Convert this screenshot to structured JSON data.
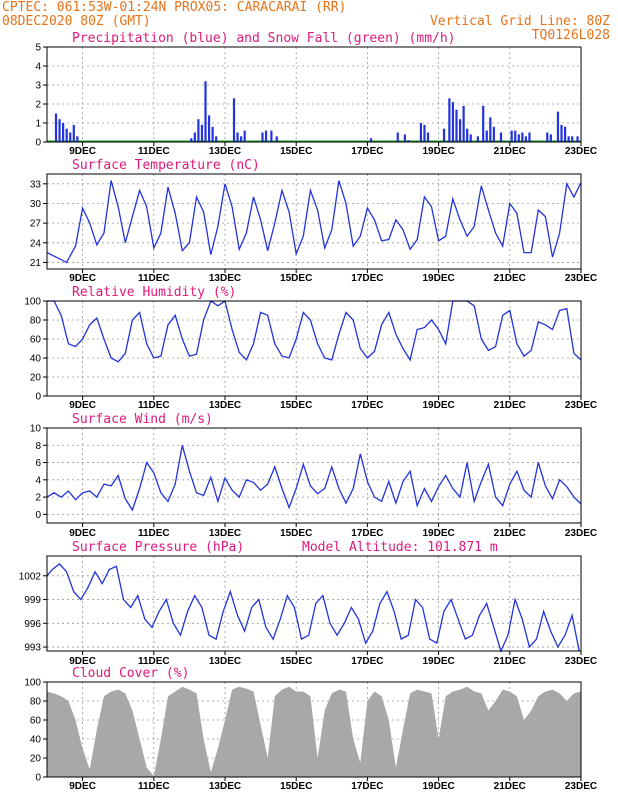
{
  "header": {
    "line1_left": "CPTEC:   061:53W-01:24N  PROX05: CARACARAI (RR)",
    "line2_left": "08DEC2020 80Z (GMT)",
    "line2_right": "Vertical Grid Line: 80Z",
    "line3_right": "TQ0126L028"
  },
  "colors": {
    "header": "#e8731a",
    "panel_title": "#e0197d",
    "series": "#2233dd",
    "snow": "#1a9a1a",
    "cloud": "#a8a8a8",
    "grid": "#9a9a9a"
  },
  "x_axis": {
    "labels": [
      "9DEC",
      "11DEC",
      "13DEC",
      "15DEC",
      "17DEC",
      "19DEC",
      "21DEC",
      "23DEC"
    ],
    "label_days": [
      1,
      3,
      5,
      7,
      9,
      11,
      13,
      15
    ],
    "range_days": [
      0,
      15
    ]
  },
  "chart_data": [
    {
      "type": "bar",
      "title": "Precipitation (blue) and Snow Fall (green) (mm/h)",
      "ylim": [
        0,
        5
      ],
      "yticks": [
        0,
        1,
        2,
        3,
        4,
        5
      ],
      "series": [
        {
          "name": "Precipitation",
          "color": "blue",
          "points": [
            [
              0.25,
              1.5
            ],
            [
              0.35,
              1.2
            ],
            [
              0.45,
              1.0
            ],
            [
              0.55,
              0.7
            ],
            [
              0.65,
              0.5
            ],
            [
              0.75,
              0.9
            ],
            [
              0.85,
              0.3
            ],
            [
              4.05,
              0.2
            ],
            [
              4.15,
              0.5
            ],
            [
              4.25,
              1.2
            ],
            [
              4.35,
              0.9
            ],
            [
              4.45,
              3.2
            ],
            [
              4.55,
              1.4
            ],
            [
              4.65,
              0.8
            ],
            [
              4.75,
              0.3
            ],
            [
              5.25,
              2.3
            ],
            [
              5.35,
              0.5
            ],
            [
              5.45,
              0.3
            ],
            [
              5.55,
              0.6
            ],
            [
              6.05,
              0.5
            ],
            [
              6.15,
              0.6
            ],
            [
              6.3,
              0.6
            ],
            [
              6.45,
              0.3
            ],
            [
              9.1,
              0.2
            ],
            [
              9.85,
              0.5
            ],
            [
              10.05,
              0.4
            ],
            [
              10.15,
              0.1
            ],
            [
              10.5,
              1.0
            ],
            [
              10.6,
              0.9
            ],
            [
              10.7,
              0.5
            ],
            [
              11.15,
              0.7
            ],
            [
              11.3,
              2.3
            ],
            [
              11.4,
              2.1
            ],
            [
              11.5,
              1.7
            ],
            [
              11.6,
              1.2
            ],
            [
              11.7,
              1.9
            ],
            [
              11.8,
              0.7
            ],
            [
              11.9,
              0.4
            ],
            [
              12.1,
              0.3
            ],
            [
              12.25,
              1.9
            ],
            [
              12.35,
              0.6
            ],
            [
              12.45,
              1.3
            ],
            [
              12.55,
              0.8
            ],
            [
              12.75,
              0.5
            ],
            [
              13.05,
              0.6
            ],
            [
              13.15,
              0.6
            ],
            [
              13.25,
              0.4
            ],
            [
              13.35,
              0.5
            ],
            [
              13.45,
              0.3
            ],
            [
              13.55,
              0.5
            ],
            [
              14.05,
              0.5
            ],
            [
              14.15,
              0.4
            ],
            [
              14.35,
              1.6
            ],
            [
              14.45,
              0.9
            ],
            [
              14.55,
              0.8
            ],
            [
              14.65,
              0.3
            ],
            [
              14.75,
              0.3
            ],
            [
              14.9,
              0.3
            ]
          ]
        },
        {
          "name": "Snow Fall",
          "color": "green",
          "points": []
        }
      ]
    },
    {
      "type": "line",
      "title": "Surface Temperature (nC)",
      "ylim": [
        20,
        34.5
      ],
      "yticks": [
        21,
        24,
        27,
        30,
        33
      ],
      "x": [
        0,
        0.3,
        0.55,
        0.8,
        1.0,
        1.2,
        1.4,
        1.6,
        1.8,
        2.0,
        2.2,
        2.4,
        2.6,
        2.8,
        3.0,
        3.2,
        3.4,
        3.6,
        3.8,
        4.0,
        4.2,
        4.4,
        4.6,
        4.8,
        5.0,
        5.2,
        5.4,
        5.6,
        5.8,
        6.0,
        6.2,
        6.4,
        6.6,
        6.8,
        7.0,
        7.2,
        7.4,
        7.6,
        7.8,
        8.0,
        8.2,
        8.4,
        8.6,
        8.8,
        9.0,
        9.2,
        9.4,
        9.6,
        9.8,
        10.0,
        10.2,
        10.4,
        10.6,
        10.8,
        11.0,
        11.2,
        11.4,
        11.6,
        11.8,
        12.0,
        12.2,
        12.4,
        12.6,
        12.8,
        13.0,
        13.2,
        13.4,
        13.6,
        13.8,
        14.0,
        14.2,
        14.4,
        14.6,
        14.8,
        15.0
      ],
      "series": [
        {
          "values": [
            22.5,
            21.7,
            21.0,
            23.5,
            29.3,
            27.0,
            23.7,
            25.5,
            33.5,
            29.5,
            24.0,
            28.0,
            32.0,
            29.5,
            23.2,
            25.5,
            32.5,
            28.5,
            22.8,
            24.0,
            31.0,
            28.7,
            22.2,
            26.5,
            33.0,
            29.5,
            23.0,
            25.5,
            31.0,
            27.5,
            22.8,
            27.0,
            32.0,
            28.7,
            22.3,
            25.0,
            32.0,
            29.0,
            23.2,
            26.0,
            33.5,
            30.0,
            23.5,
            25.0,
            29.3,
            27.5,
            24.3,
            24.5,
            27.5,
            26.0,
            23.0,
            24.5,
            31.0,
            29.5,
            24.3,
            25.0,
            30.7,
            27.5,
            25.0,
            26.5,
            32.7,
            29.0,
            25.5,
            23.5,
            30.0,
            28.5,
            22.5,
            22.5,
            29.0,
            28.0,
            21.8,
            25.5,
            33.0,
            31.0,
            33.2
          ]
        }
      ]
    },
    {
      "type": "line",
      "title": "Relative Humidity (%)",
      "ylim": [
        0,
        100
      ],
      "yticks": [
        0,
        20,
        40,
        60,
        80,
        100
      ],
      "x": [
        0,
        0.2,
        0.4,
        0.6,
        0.8,
        1.0,
        1.2,
        1.4,
        1.6,
        1.8,
        2.0,
        2.2,
        2.4,
        2.6,
        2.8,
        3.0,
        3.2,
        3.4,
        3.6,
        3.8,
        4.0,
        4.2,
        4.4,
        4.6,
        4.8,
        5.0,
        5.2,
        5.4,
        5.6,
        5.8,
        6.0,
        6.2,
        6.4,
        6.6,
        6.8,
        7.0,
        7.2,
        7.4,
        7.6,
        7.8,
        8.0,
        8.2,
        8.4,
        8.6,
        8.8,
        9.0,
        9.2,
        9.4,
        9.6,
        9.8,
        10.0,
        10.2,
        10.4,
        10.6,
        10.8,
        11.0,
        11.2,
        11.4,
        11.6,
        11.8,
        12.0,
        12.2,
        12.4,
        12.6,
        12.8,
        13.0,
        13.2,
        13.4,
        13.6,
        13.8,
        14.0,
        14.2,
        14.4,
        14.6,
        14.8,
        15.0
      ],
      "series": [
        {
          "values": [
            100,
            100,
            85,
            55,
            52,
            60,
            75,
            82,
            60,
            40,
            36,
            45,
            80,
            88,
            55,
            40,
            42,
            75,
            85,
            60,
            42,
            44,
            80,
            100,
            95,
            100,
            70,
            46,
            38,
            55,
            88,
            85,
            55,
            42,
            40,
            60,
            88,
            80,
            55,
            40,
            38,
            65,
            88,
            80,
            50,
            40,
            47,
            75,
            88,
            65,
            50,
            38,
            70,
            72,
            80,
            70,
            55,
            100,
            100,
            100,
            95,
            60,
            48,
            52,
            85,
            90,
            55,
            42,
            48,
            78,
            75,
            70,
            90,
            92,
            45,
            38
          ]
        }
      ]
    },
    {
      "type": "line",
      "title": "Surface Wind (m/s)",
      "ylim": [
        -1,
        10
      ],
      "yticks": [
        0,
        2,
        4,
        6,
        8,
        10
      ],
      "x": [
        0,
        0.2,
        0.4,
        0.6,
        0.8,
        1.0,
        1.2,
        1.4,
        1.6,
        1.8,
        2.0,
        2.2,
        2.4,
        2.6,
        2.8,
        3.0,
        3.2,
        3.4,
        3.6,
        3.8,
        4.0,
        4.2,
        4.4,
        4.6,
        4.8,
        5.0,
        5.2,
        5.4,
        5.6,
        5.8,
        6.0,
        6.2,
        6.4,
        6.6,
        6.8,
        7.0,
        7.2,
        7.4,
        7.6,
        7.8,
        8.0,
        8.2,
        8.4,
        8.6,
        8.8,
        9.0,
        9.2,
        9.4,
        9.6,
        9.8,
        10.0,
        10.2,
        10.4,
        10.6,
        10.8,
        11.0,
        11.2,
        11.4,
        11.6,
        11.8,
        12.0,
        12.2,
        12.4,
        12.6,
        12.8,
        13.0,
        13.2,
        13.4,
        13.6,
        13.8,
        14.0,
        14.2,
        14.4,
        14.6,
        14.8,
        15.0
      ],
      "series": [
        {
          "values": [
            2.0,
            2.5,
            2.0,
            2.7,
            1.7,
            2.5,
            2.7,
            2.0,
            3.5,
            3.3,
            4.5,
            1.8,
            0.5,
            3.0,
            6.0,
            4.8,
            2.5,
            1.5,
            3.5,
            8.0,
            5.0,
            2.5,
            2.2,
            4.3,
            1.5,
            4.2,
            2.8,
            2.0,
            4.0,
            3.7,
            2.8,
            3.5,
            5.5,
            3.0,
            0.8,
            3.0,
            5.8,
            3.3,
            2.4,
            3.0,
            5.5,
            3.0,
            1.3,
            3.0,
            7.0,
            3.8,
            2.0,
            1.5,
            3.8,
            1.3,
            3.8,
            5.0,
            1.0,
            3.0,
            1.5,
            3.2,
            4.5,
            3.0,
            2.0,
            6.0,
            1.5,
            3.8,
            5.8,
            2.0,
            1.0,
            3.5,
            5.0,
            2.8,
            2.0,
            6.0,
            3.3,
            1.8,
            4.0,
            3.2,
            2.0,
            1.2
          ]
        }
      ]
    },
    {
      "type": "line",
      "title": "Surface Pressure (hPa)",
      "annotation": "Model Altitude: 101.871 m",
      "ylim": [
        992.5,
        1004.5
      ],
      "yticks": [
        993,
        996,
        999,
        1002
      ],
      "x": [
        0,
        0.15,
        0.35,
        0.55,
        0.75,
        0.95,
        1.15,
        1.35,
        1.55,
        1.75,
        1.95,
        2.15,
        2.35,
        2.55,
        2.75,
        2.95,
        3.15,
        3.35,
        3.55,
        3.75,
        3.95,
        4.15,
        4.35,
        4.55,
        4.75,
        4.95,
        5.15,
        5.35,
        5.55,
        5.75,
        5.95,
        6.15,
        6.35,
        6.55,
        6.75,
        6.95,
        7.15,
        7.35,
        7.55,
        7.75,
        7.95,
        8.15,
        8.35,
        8.55,
        8.75,
        8.95,
        9.15,
        9.35,
        9.55,
        9.75,
        9.95,
        10.15,
        10.35,
        10.55,
        10.75,
        10.95,
        11.15,
        11.35,
        11.55,
        11.75,
        11.95,
        12.15,
        12.35,
        12.55,
        12.75,
        12.95,
        13.15,
        13.35,
        13.55,
        13.75,
        13.95,
        14.15,
        14.35,
        14.55,
        14.75,
        14.95
      ],
      "series": [
        {
          "values": [
            1002.0,
            1002.8,
            1003.5,
            1002.5,
            1000.0,
            999.0,
            1000.5,
            1002.5,
            1001.0,
            1002.8,
            1003.2,
            999.0,
            998.0,
            999.5,
            996.5,
            995.5,
            997.5,
            999.0,
            996.0,
            994.5,
            997.5,
            999.5,
            998.0,
            994.5,
            994.0,
            997.5,
            1000.0,
            997.0,
            995.0,
            998.0,
            999.0,
            995.5,
            994.0,
            996.5,
            999.5,
            998.0,
            994.0,
            994.5,
            998.5,
            999.5,
            996.0,
            994.5,
            996.0,
            998.0,
            996.5,
            993.5,
            995.0,
            998.5,
            1000.0,
            997.5,
            994.0,
            994.5,
            999.0,
            998.0,
            994.0,
            993.5,
            997.5,
            999.0,
            996.5,
            994.0,
            994.5,
            997.0,
            998.5,
            995.5,
            992.5,
            994.5,
            999.0,
            996.5,
            993.0,
            994.0,
            997.5,
            995.0,
            993.0,
            994.5,
            997.0,
            992.5
          ]
        }
      ]
    },
    {
      "type": "area",
      "title": "Cloud Cover (%)",
      "ylim": [
        0,
        100
      ],
      "yticks": [
        0,
        20,
        40,
        60,
        80,
        100
      ],
      "x": [
        0,
        0.2,
        0.4,
        0.6,
        0.8,
        1.0,
        1.2,
        1.4,
        1.6,
        1.8,
        2.0,
        2.2,
        2.4,
        2.6,
        2.8,
        3.0,
        3.2,
        3.4,
        3.6,
        3.8,
        4.0,
        4.2,
        4.4,
        4.6,
        4.8,
        5.0,
        5.2,
        5.4,
        5.6,
        5.8,
        6.0,
        6.2,
        6.4,
        6.6,
        6.8,
        7.0,
        7.2,
        7.4,
        7.6,
        7.8,
        8.0,
        8.2,
        8.4,
        8.6,
        8.8,
        9.0,
        9.2,
        9.4,
        9.6,
        9.8,
        10.0,
        10.2,
        10.4,
        10.6,
        10.8,
        11.0,
        11.2,
        11.4,
        11.6,
        11.8,
        12.0,
        12.2,
        12.4,
        12.6,
        12.8,
        13.0,
        13.2,
        13.4,
        13.6,
        13.8,
        14.0,
        14.2,
        14.4,
        14.6,
        14.8,
        15.0
      ],
      "series": [
        {
          "values": [
            90,
            88,
            85,
            80,
            60,
            30,
            8,
            50,
            85,
            90,
            92,
            88,
            70,
            40,
            10,
            1,
            40,
            85,
            90,
            95,
            92,
            88,
            40,
            5,
            30,
            60,
            92,
            95,
            93,
            90,
            55,
            20,
            85,
            92,
            95,
            90,
            90,
            85,
            20,
            70,
            88,
            92,
            90,
            40,
            15,
            80,
            90,
            85,
            60,
            10,
            50,
            88,
            92,
            90,
            88,
            40,
            85,
            90,
            92,
            95,
            90,
            88,
            70,
            80,
            92,
            90,
            85,
            60,
            70,
            85,
            90,
            92,
            88,
            80,
            88,
            90
          ]
        }
      ]
    }
  ]
}
